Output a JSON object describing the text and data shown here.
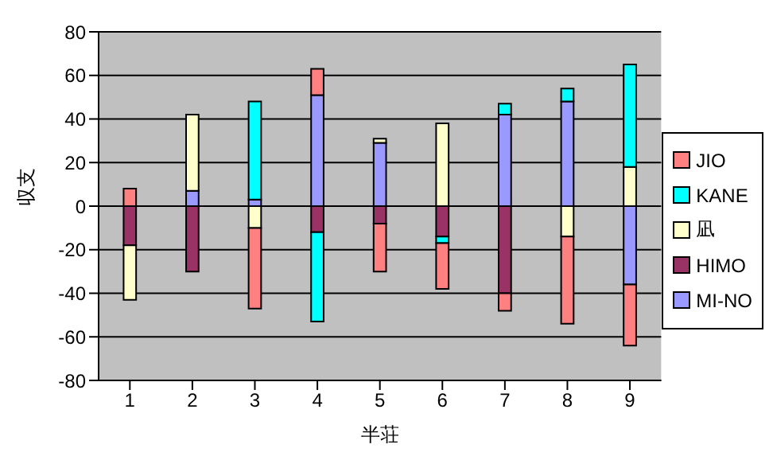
{
  "chart_data": {
    "type": "bar",
    "stacked": true,
    "xlabel": "半荘",
    "ylabel": "収支",
    "categories": [
      "1",
      "2",
      "3",
      "4",
      "5",
      "6",
      "7",
      "8",
      "9"
    ],
    "series": [
      {
        "name": "MI-NO",
        "color": "#9999ff",
        "values": [
          null,
          7,
          3,
          51,
          29,
          null,
          42,
          48,
          -36
        ]
      },
      {
        "name": "HIMO",
        "color": "#993366",
        "values": [
          -18,
          -30,
          null,
          -12,
          -8,
          -14,
          -40,
          null,
          null
        ]
      },
      {
        "name": "凪",
        "color": "#ffffcc",
        "values": [
          -25,
          35,
          -10,
          null,
          2,
          38,
          null,
          -14,
          18
        ]
      },
      {
        "name": "KANE",
        "color": "#00ffff",
        "values": [
          null,
          null,
          45,
          -41,
          null,
          -3,
          5,
          6,
          47
        ]
      },
      {
        "name": "JIO",
        "color": "#ff8080",
        "values": [
          8,
          null,
          -37,
          12,
          -22,
          -21,
          -8,
          -40,
          -28
        ]
      }
    ],
    "ylim": [
      -80,
      80
    ],
    "yticks": [
      -80,
      -60,
      -40,
      -20,
      0,
      20,
      40,
      60,
      80
    ],
    "grid": "y",
    "legend": "right"
  }
}
